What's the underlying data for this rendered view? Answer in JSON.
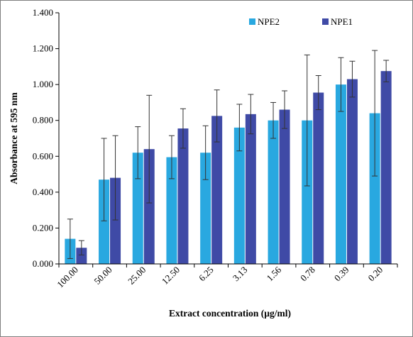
{
  "chart_data": {
    "type": "bar",
    "title": "",
    "xlabel": "Extract concentration (µg/ml)",
    "ylabel": "Absorbance at 595 nm",
    "ylim": [
      0,
      1.4
    ],
    "yticks": [
      "0.000",
      "0.200",
      "0.400",
      "0.600",
      "0.800",
      "1.000",
      "1.200",
      "1.400"
    ],
    "categories": [
      "100.00",
      "50.00",
      "25.00",
      "12.50",
      "6.25",
      "3.13",
      "1.56",
      "0.78",
      "0.39",
      "0.20"
    ],
    "series": [
      {
        "name": "NPE2",
        "color": "#29a8e0",
        "values": [
          0.14,
          0.47,
          0.62,
          0.595,
          0.62,
          0.76,
          0.8,
          0.8,
          1.0,
          0.84
        ],
        "error": [
          0.11,
          0.23,
          0.145,
          0.12,
          0.15,
          0.13,
          0.1,
          0.365,
          0.15,
          0.35
        ]
      },
      {
        "name": "NPE1",
        "color": "#3f4aa6",
        "values": [
          0.09,
          0.48,
          0.64,
          0.755,
          0.825,
          0.835,
          0.86,
          0.955,
          1.03,
          1.075
        ],
        "error": [
          0.04,
          0.235,
          0.3,
          0.11,
          0.145,
          0.11,
          0.105,
          0.095,
          0.1,
          0.06
        ]
      }
    ],
    "grid": false,
    "legend_position": "top-right"
  }
}
